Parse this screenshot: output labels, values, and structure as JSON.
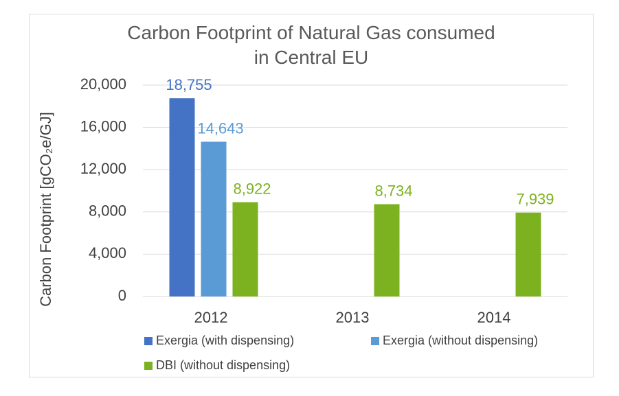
{
  "chart_data": {
    "type": "bar",
    "title": "Carbon Footprint of Natural Gas consumed in Central EU",
    "y_label": "Carbon Footprint [gCO₂e/GJ]",
    "categories": [
      "2012",
      "2013",
      "2014"
    ],
    "series": [
      {
        "name": "Exergia (with dispensing)",
        "color": "#4472c4",
        "values": [
          18755,
          null,
          null
        ],
        "value_labels": [
          "18,755",
          null,
          null
        ]
      },
      {
        "name": "Exergia (without dispensing)",
        "color": "#5b9bd5",
        "values": [
          14643,
          null,
          null
        ],
        "value_labels": [
          "14,643",
          null,
          null
        ]
      },
      {
        "name": "DBI (without dispensing)",
        "color": "#7cb21f",
        "values": [
          8922,
          8734,
          7939
        ],
        "value_labels": [
          "8,922",
          "8,734",
          "7,939"
        ]
      }
    ],
    "ylim": [
      0,
      20000
    ],
    "yticks": [
      0,
      {
        "value": 4000,
        "label": "4,000"
      },
      {
        "value": 8000,
        "label": "8,000"
      },
      {
        "value": 12000,
        "label": "12,000"
      },
      {
        "value": 16000,
        "label": "16,000"
      },
      {
        "value": 20000,
        "label": "20,000"
      }
    ],
    "grid": true,
    "legend": "bottom"
  }
}
